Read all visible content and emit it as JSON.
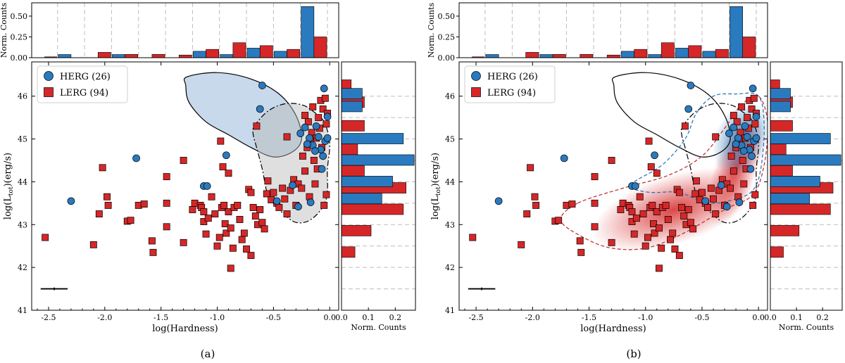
{
  "figure": {
    "caption_a": "(a)",
    "caption_b": "(b)"
  },
  "chart_data": [
    {
      "panel": "a",
      "type": "scatter",
      "title": "",
      "xlabel": "log(Hardness)",
      "ylabel": "log(Ltot)(erg/s)",
      "ylabel_main": "log(L",
      "ylabel_sub": "tot",
      "ylabel_tail": ")(erg/s)",
      "xlim": [
        -2.65,
        0.08
      ],
      "ylim": [
        41.0,
        46.8
      ],
      "xticks": [
        "-2.5",
        "-2.0",
        "-1.5",
        "-1.0",
        "-0.5",
        "0.0"
      ],
      "yticks": [
        "41",
        "42",
        "43",
        "44",
        "45",
        "46"
      ],
      "legend": {
        "placement": "top-left",
        "entries": [
          "HERG (26)",
          "LERG (94)"
        ]
      },
      "top_hist_ylabel": "Norm. Counts",
      "top_hist_yticks": [
        "0.00",
        "0.25",
        "0.50"
      ],
      "right_hist_xlabel": "Norm. Counts",
      "right_hist_xticks": [
        "0.0",
        "0.1",
        "0.2"
      ],
      "extras": "kde-contours"
    },
    {
      "panel": "b",
      "type": "scatter",
      "title": "",
      "xlabel": "log(Hardness)",
      "ylabel": "log(Ltot)(erg/s)",
      "ylabel_main": "log(L",
      "ylabel_sub": "tot",
      "ylabel_tail": ")(erg/s)",
      "xlim": [
        -2.65,
        0.08
      ],
      "ylim": [
        41.0,
        46.8
      ],
      "xticks": [
        "-2.5",
        "-2.0",
        "-1.5",
        "-1.0",
        "-0.5",
        "0.0"
      ],
      "yticks": [
        "41",
        "42",
        "43",
        "44",
        "45",
        "46"
      ],
      "legend": {
        "placement": "top-left",
        "entries": [
          "HERG (26)",
          "LERG (94)"
        ]
      },
      "top_hist_ylabel": "Norm. Counts",
      "top_hist_yticks": [
        "0.00",
        "0.25",
        "0.50"
      ],
      "right_hist_xlabel": "Norm. Counts",
      "right_hist_xticks": [
        "0.0",
        "0.1",
        "0.2"
      ],
      "extras": "density-shading"
    }
  ],
  "series": {
    "herg": {
      "name": "HERG (26)",
      "color": "#2a7abf",
      "points": [
        [
          -2.3,
          43.55
        ],
        [
          -1.72,
          44.55
        ],
        [
          -1.12,
          43.9
        ],
        [
          -1.09,
          43.9
        ],
        [
          -0.92,
          44.62
        ],
        [
          -0.6,
          46.25
        ],
        [
          -0.62,
          45.7
        ],
        [
          -0.47,
          43.55
        ],
        [
          -0.33,
          43.92
        ],
        [
          -0.28,
          43.42
        ],
        [
          -0.26,
          45.13
        ],
        [
          -0.22,
          45.27
        ],
        [
          -0.18,
          45.02
        ],
        [
          -0.15,
          44.85
        ],
        [
          -0.12,
          45.3
        ],
        [
          -0.1,
          45.05
        ],
        [
          -0.08,
          44.75
        ],
        [
          -0.06,
          44.6
        ],
        [
          -0.04,
          44.95
        ],
        [
          -0.02,
          45.02
        ],
        [
          -0.05,
          46.18
        ],
        [
          -0.02,
          45.52
        ],
        [
          -0.13,
          44.72
        ],
        [
          -0.2,
          44.88
        ],
        [
          -0.07,
          44.3
        ],
        [
          -0.17,
          43.52
        ]
      ]
    },
    "lerg": {
      "name": "LERG (94)",
      "color": "#d62728",
      "points": [
        [
          -2.53,
          42.7
        ],
        [
          -2.1,
          42.53
        ],
        [
          -2.02,
          44.33
        ],
        [
          -1.98,
          43.65
        ],
        [
          -1.97,
          43.45
        ],
        [
          -2.05,
          43.25
        ],
        [
          -1.8,
          43.08
        ],
        [
          -1.77,
          43.1
        ],
        [
          -1.7,
          43.45
        ],
        [
          -1.65,
          43.48
        ],
        [
          -1.58,
          42.62
        ],
        [
          -1.57,
          42.35
        ],
        [
          -1.45,
          43.5
        ],
        [
          -1.45,
          42.95
        ],
        [
          -1.45,
          44.12
        ],
        [
          -1.3,
          44.5
        ],
        [
          -1.3,
          42.58
        ],
        [
          -1.22,
          43.35
        ],
        [
          -1.2,
          43.5
        ],
        [
          -1.15,
          43.45
        ],
        [
          -1.14,
          43.4
        ],
        [
          -1.12,
          43.3
        ],
        [
          -1.12,
          43.07
        ],
        [
          -1.1,
          42.78
        ],
        [
          -1.08,
          43.15
        ],
        [
          -1.05,
          43.65
        ],
        [
          -1.02,
          43.25
        ],
        [
          -1.0,
          42.5
        ],
        [
          -0.98,
          42.7
        ],
        [
          -0.96,
          43.4
        ],
        [
          -0.94,
          43.45
        ],
        [
          -0.93,
          43.02
        ],
        [
          -0.92,
          42.8
        ],
        [
          -0.9,
          43.3
        ],
        [
          -0.88,
          42.92
        ],
        [
          -0.95,
          44.35
        ],
        [
          -0.97,
          44.95
        ],
        [
          -0.9,
          44.2
        ],
        [
          -0.88,
          41.98
        ],
        [
          -0.86,
          42.45
        ],
        [
          -0.85,
          43.4
        ],
        [
          -0.82,
          43.45
        ],
        [
          -0.8,
          43.12
        ],
        [
          -0.78,
          42.65
        ],
        [
          -0.76,
          42.8
        ],
        [
          -0.74,
          42.43
        ],
        [
          -0.72,
          43.82
        ],
        [
          -0.7,
          43.75
        ],
        [
          -0.7,
          42.28
        ],
        [
          -0.68,
          43.4
        ],
        [
          -0.66,
          43.2
        ],
        [
          -0.64,
          43.0
        ],
        [
          -0.62,
          43.35
        ],
        [
          -0.6,
          43.05
        ],
        [
          -0.58,
          42.9
        ],
        [
          -0.56,
          43.72
        ],
        [
          -0.55,
          44.02
        ],
        [
          -0.52,
          43.58
        ],
        [
          -0.5,
          43.75
        ],
        [
          -0.47,
          43.5
        ],
        [
          -0.45,
          43.4
        ],
        [
          -0.42,
          43.85
        ],
        [
          -0.4,
          43.6
        ],
        [
          -0.38,
          43.25
        ],
        [
          -0.35,
          43.8
        ],
        [
          -0.32,
          44.05
        ],
        [
          -0.3,
          43.45
        ],
        [
          -0.28,
          43.95
        ],
        [
          -0.25,
          43.85
        ],
        [
          -0.24,
          44.6
        ],
        [
          -0.22,
          44.25
        ],
        [
          -0.2,
          44.8
        ],
        [
          -0.18,
          43.65
        ],
        [
          -0.16,
          45.15
        ],
        [
          -0.14,
          44.5
        ],
        [
          -0.12,
          45.02
        ],
        [
          -0.1,
          45.5
        ],
        [
          -0.08,
          45.9
        ],
        [
          -0.06,
          45.7
        ],
        [
          -0.04,
          45.95
        ],
        [
          -0.02,
          45.6
        ],
        [
          -0.03,
          45.35
        ],
        [
          -0.07,
          44.8
        ],
        [
          -0.09,
          45.25
        ],
        [
          -0.11,
          44.3
        ],
        [
          -0.13,
          43.95
        ],
        [
          -0.15,
          45.75
        ],
        [
          -0.17,
          44.95
        ],
        [
          -0.19,
          45.4
        ],
        [
          -0.05,
          43.45
        ],
        [
          -0.03,
          43.7
        ],
        [
          -0.65,
          45.3
        ],
        [
          -0.38,
          45.05
        ],
        [
          -0.22,
          45.55
        ]
      ]
    }
  },
  "top_hist": {
    "bin_edges": [
      -2.65,
      -2.42,
      -2.18,
      -1.94,
      -1.7,
      -1.46,
      -1.22,
      -0.98,
      -0.74,
      -0.5,
      -0.26,
      -0.02,
      0.08
    ],
    "herg": [
      0.0,
      0.038,
      0.0,
      0.038,
      0.0,
      0.0,
      0.077,
      0.038,
      0.115,
      0.077,
      0.615,
      0.0
    ],
    "lerg": [
      0.01,
      0.0,
      0.064,
      0.04,
      0.04,
      0.032,
      0.1,
      0.18,
      0.145,
      0.1,
      0.25,
      0.0
    ]
  },
  "right_hist": {
    "herg": [
      [
        46.05,
        0.077
      ],
      [
        45.75,
        0.077
      ],
      [
        45.0,
        0.23
      ],
      [
        44.5,
        0.27
      ],
      [
        44.0,
        0.19
      ],
      [
        43.6,
        0.15
      ]
    ],
    "lerg": [
      [
        46.25,
        0.036
      ],
      [
        45.85,
        0.085
      ],
      [
        45.3,
        0.085
      ],
      [
        44.75,
        0.06
      ],
      [
        44.25,
        0.085
      ],
      [
        43.85,
        0.24
      ],
      [
        43.35,
        0.23
      ],
      [
        42.85,
        0.11
      ],
      [
        42.35,
        0.05
      ]
    ]
  },
  "error_bar": {
    "x": -2.45,
    "y": 41.5,
    "xerr": 0.12,
    "yerr": 0.03
  },
  "contours": {
    "herg_solid": [
      [
        -1.27,
        46.45
      ],
      [
        -1.0,
        46.55
      ],
      [
        -0.7,
        46.4
      ],
      [
        -0.45,
        46.05
      ],
      [
        -0.3,
        45.55
      ],
      [
        -0.25,
        45.0
      ],
      [
        -0.33,
        44.7
      ],
      [
        -0.5,
        44.58
      ],
      [
        -0.7,
        44.8
      ],
      [
        -0.9,
        45.1
      ],
      [
        -1.1,
        45.4
      ],
      [
        -1.25,
        45.85
      ],
      [
        -1.28,
        46.25
      ]
    ],
    "lerg_dashdot": [
      [
        -0.67,
        45.3
      ],
      [
        -0.55,
        45.65
      ],
      [
        -0.4,
        45.82
      ],
      [
        -0.25,
        45.8
      ],
      [
        -0.15,
        45.65
      ],
      [
        -0.05,
        45.4
      ],
      [
        0.0,
        44.9
      ],
      [
        -0.02,
        44.3
      ],
      [
        -0.03,
        43.6
      ],
      [
        -0.15,
        43.15
      ],
      [
        -0.3,
        43.05
      ],
      [
        -0.45,
        43.35
      ],
      [
        -0.55,
        43.7
      ],
      [
        -0.6,
        44.3
      ],
      [
        -0.65,
        44.8
      ],
      [
        -0.68,
        45.1
      ]
    ],
    "herg_dashed": [
      [
        -1.1,
        44.0
      ],
      [
        -0.85,
        44.4
      ],
      [
        -0.65,
        45.0
      ],
      [
        -0.55,
        45.6
      ],
      [
        -0.4,
        46.0
      ],
      [
        -0.2,
        46.05
      ],
      [
        0.0,
        46.0
      ],
      [
        0.05,
        45.3
      ],
      [
        0.02,
        44.3
      ],
      [
        -0.05,
        43.8
      ],
      [
        -0.2,
        43.6
      ],
      [
        -0.45,
        43.5
      ],
      [
        -0.7,
        43.75
      ],
      [
        -0.95,
        43.75
      ],
      [
        -1.12,
        43.85
      ]
    ],
    "lerg_dashed": [
      [
        -1.6,
        43.5
      ],
      [
        -1.2,
        43.85
      ],
      [
        -0.8,
        44.15
      ],
      [
        -0.5,
        44.6
      ],
      [
        -0.3,
        45.25
      ],
      [
        -0.15,
        45.8
      ],
      [
        0.0,
        46.0
      ],
      [
        0.08,
        45.4
      ],
      [
        0.05,
        44.4
      ],
      [
        -0.05,
        43.7
      ],
      [
        -0.3,
        43.35
      ],
      [
        -0.7,
        42.75
      ],
      [
        -1.0,
        42.45
      ],
      [
        -1.3,
        42.45
      ],
      [
        -1.55,
        42.7
      ],
      [
        -1.75,
        43.1
      ]
    ]
  }
}
